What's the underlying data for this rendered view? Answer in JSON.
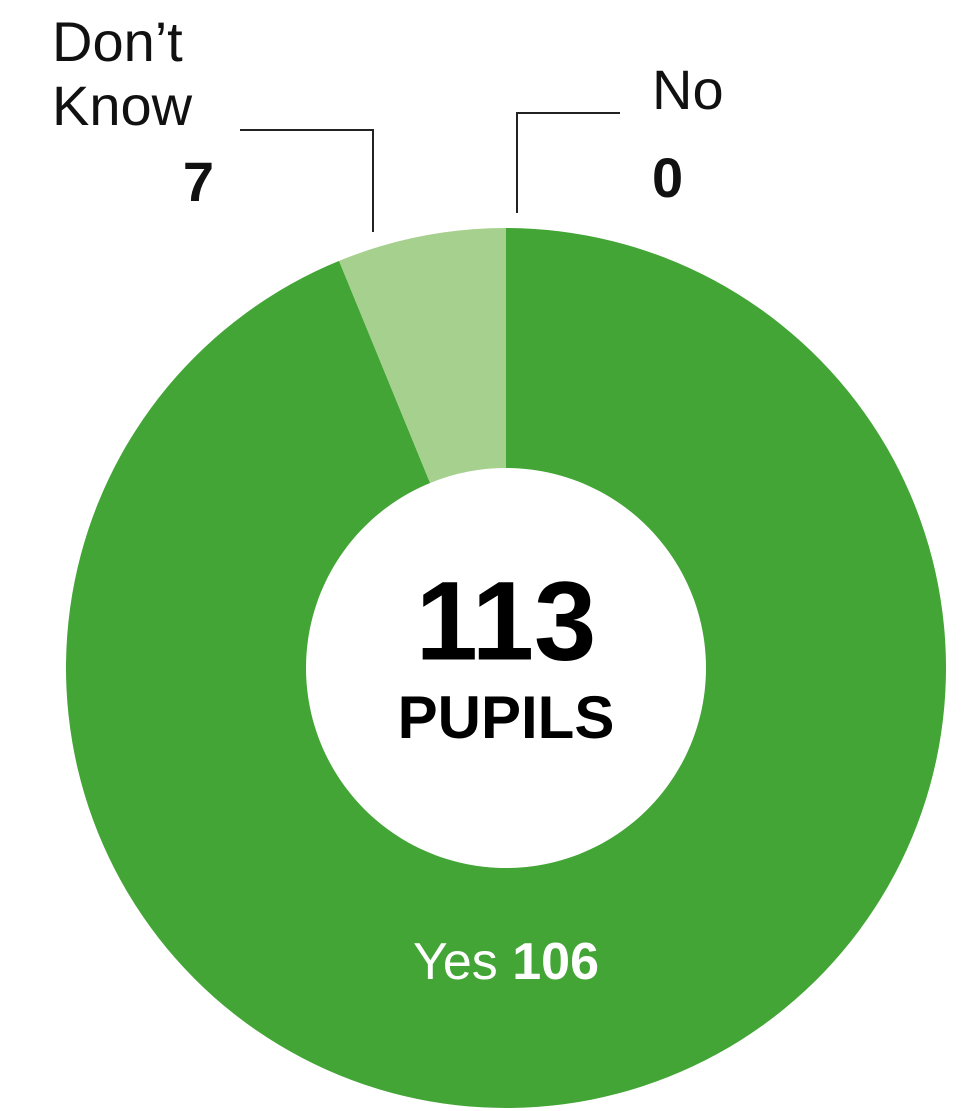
{
  "chart_data": {
    "type": "donut",
    "categories": [
      "Yes",
      "Don’t Know",
      "No"
    ],
    "values": [
      106,
      7,
      0
    ],
    "colors": [
      "#42a535",
      "#a6d08e",
      "#2e7d32"
    ],
    "center_value": 113,
    "center_label": "PUPILS"
  }
}
